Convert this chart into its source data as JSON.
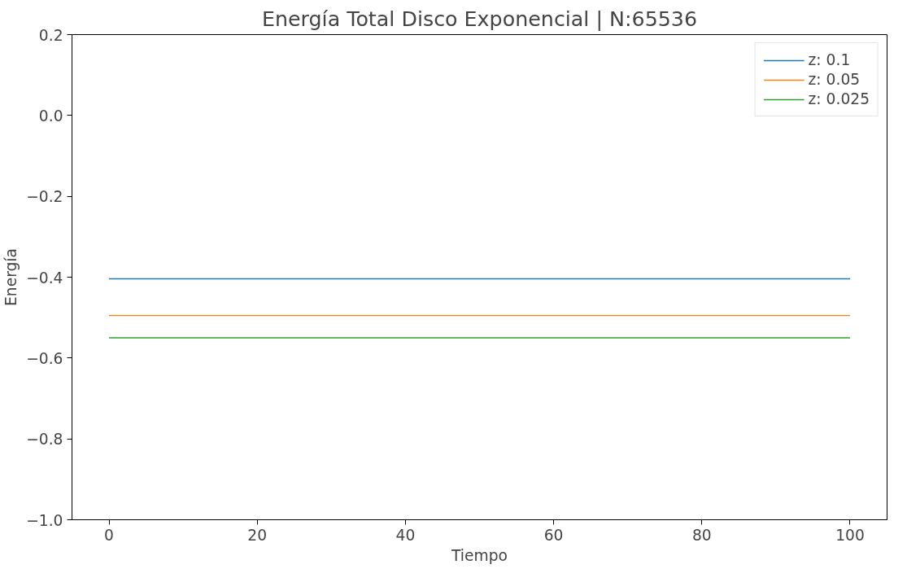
{
  "chart_data": {
    "type": "line",
    "title": "Energía Total Disco Exponencial | N:65536",
    "xlabel": "Tiempo",
    "ylabel": "Energía",
    "x": [
      0,
      100
    ],
    "series": [
      {
        "name": "z: 0.1",
        "color": "#1f77b4",
        "values": [
          -0.404,
          -0.404
        ]
      },
      {
        "name": "z: 0.05",
        "color": "#ff7f0e",
        "values": [
          -0.495,
          -0.495
        ]
      },
      {
        "name": "z: 0.025",
        "color": "#2ca02c",
        "values": [
          -0.55,
          -0.55
        ]
      }
    ],
    "xlim": [
      -5,
      105
    ],
    "ylim": [
      -1.0,
      0.2
    ],
    "xticks": [
      0,
      20,
      40,
      60,
      80,
      100
    ],
    "yticks": [
      {
        "value": 0.2,
        "label": "0.2"
      },
      {
        "value": 0.0,
        "label": "0.0"
      },
      {
        "value": -0.2,
        "label": "−0.2"
      },
      {
        "value": -0.4,
        "label": "−0.4"
      },
      {
        "value": -0.6,
        "label": "−0.6"
      },
      {
        "value": -0.8,
        "label": "−0.8"
      },
      {
        "value": -1.0,
        "label": "−1.0"
      }
    ],
    "legend": "top right",
    "grid": false,
    "marker": "none",
    "line_style": "solid"
  }
}
